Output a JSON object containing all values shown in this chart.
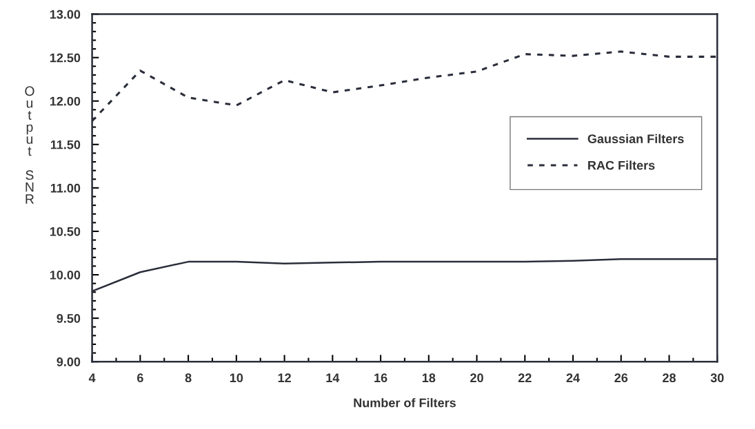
{
  "chart_data": {
    "type": "line",
    "xlabel": "Number of Filters",
    "ylabel": "Output SNR",
    "x": [
      4,
      6,
      8,
      10,
      12,
      14,
      16,
      18,
      20,
      22,
      24,
      26,
      28,
      30
    ],
    "series": [
      {
        "name": "Gaussian Filters",
        "color": "#2a2d3a",
        "line_style": "solid",
        "values": [
          9.81,
          10.03,
          10.15,
          10.15,
          10.13,
          10.14,
          10.15,
          10.15,
          10.15,
          10.15,
          10.16,
          10.18,
          10.18,
          10.18
        ]
      },
      {
        "name": "RAC Filters",
        "color": "#2a2d3a",
        "line_style": "dotted",
        "values": [
          11.77,
          12.35,
          12.04,
          11.95,
          12.24,
          12.1,
          12.18,
          12.27,
          12.34,
          12.54,
          12.52,
          12.57,
          12.51,
          12.51
        ]
      }
    ],
    "xlim": [
      4,
      30
    ],
    "xticks": [
      4,
      6,
      8,
      10,
      12,
      14,
      16,
      18,
      20,
      22,
      24,
      26,
      28,
      30
    ],
    "ylim": [
      9.0,
      13.0
    ],
    "yticks": [
      {
        "value": 9.0,
        "label": "9.00"
      },
      {
        "value": 9.5,
        "label": "9.50"
      },
      {
        "value": 10.0,
        "label": "10.00"
      },
      {
        "value": 10.5,
        "label": "10.50"
      },
      {
        "value": 11.0,
        "label": "11.00"
      },
      {
        "value": 11.5,
        "label": "11.50"
      },
      {
        "value": 12.0,
        "label": "12.00"
      },
      {
        "value": 12.5,
        "label": "12.50"
      },
      {
        "value": 13.0,
        "label": "13.00"
      }
    ],
    "grid": false,
    "legend": "right",
    "marker": "none"
  }
}
